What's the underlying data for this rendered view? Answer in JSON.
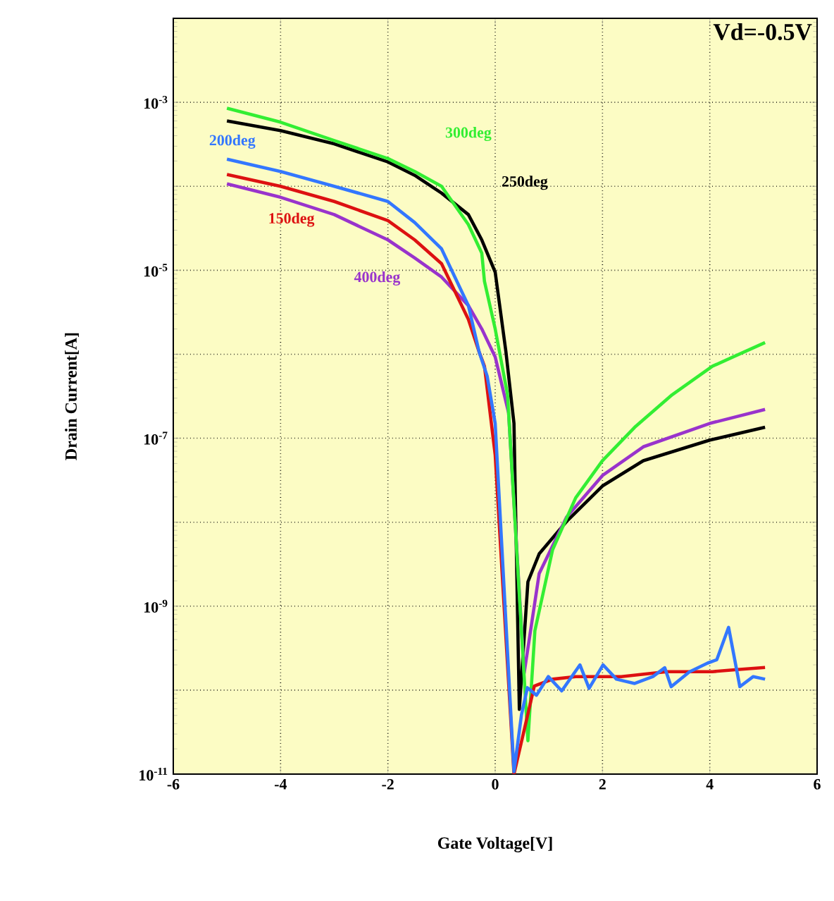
{
  "chart_data": {
    "type": "line",
    "title": "Vd=-0.5V",
    "xlabel": "Gate Voltage[V]",
    "ylabel": "Drain Current[A]",
    "xlim": [
      -6,
      6
    ],
    "xticks": [
      -6,
      -4,
      -2,
      0,
      2,
      4,
      6
    ],
    "ylim": [
      1e-11,
      0.01
    ],
    "log": "y",
    "yticks": [
      {
        "value": 1e-11,
        "label": "10$^{-11}$"
      },
      {
        "value": 1e-10,
        "label": null
      },
      {
        "value": 1e-09,
        "label": "10$^{-9}$"
      },
      {
        "value": 1e-08,
        "label": null
      },
      {
        "value": 1e-07,
        "label": "10$^{-7}$"
      },
      {
        "value": 1e-06,
        "label": null
      },
      {
        "value": 1e-05,
        "label": "10$^{-5}$"
      },
      {
        "value": 0.0001,
        "label": null
      },
      {
        "value": 0.001,
        "label": "10$^{-3}$"
      },
      {
        "value": 0.01,
        "label": null
      }
    ],
    "grid": true,
    "marker": "none",
    "line_style": "solid",
    "series": [
      {
        "name": "250deg",
        "color": "#000000",
        "x": [
          -5,
          -4,
          -3,
          -2,
          -1.5,
          -1,
          -0.5,
          -0.25,
          0,
          0.2,
          0.35,
          0.45,
          0.61,
          0.82,
          1.33,
          2.0,
          2.76,
          4.0,
          5.03
        ],
        "values": [
          0.0006,
          0.00046,
          0.00032,
          0.000195,
          0.000135,
          8.3e-05,
          4.6e-05,
          2.3e-05,
          9.5e-06,
          1.07e-06,
          1.5e-07,
          5.9e-11,
          1.95e-09,
          4.2e-09,
          1.02e-08,
          2.7e-08,
          5.4e-08,
          9.5e-08,
          1.35e-07
        ]
      },
      {
        "name": "400deg",
        "color": "#9933cc",
        "x": [
          -5,
          -4,
          -3,
          -2,
          -1.5,
          -1,
          -0.5,
          -0.25,
          0,
          0.25,
          0.54,
          0.82,
          1.33,
          2.0,
          2.76,
          4.0,
          5.03
        ],
        "values": [
          0.000107,
          7.4e-05,
          4.6e-05,
          2.3e-05,
          1.4e-05,
          8.3e-06,
          3.8e-06,
          2e-06,
          9.3e-07,
          2e-07,
          1.6e-10,
          2.45e-09,
          1.15e-08,
          3.6e-08,
          7.9e-08,
          1.5e-07,
          2.2e-07
        ]
      },
      {
        "name": "300deg",
        "color": "#33ee33",
        "x": [
          -5,
          -4,
          -3,
          -2,
          -1.5,
          -1,
          -0.5,
          -0.25,
          -0.2,
          0,
          0.23,
          0.61,
          0.74,
          1.07,
          1.5,
          2.0,
          2.6,
          3.3,
          4.05,
          5.03
        ],
        "values": [
          0.00085,
          0.00058,
          0.00035,
          0.000214,
          0.00015,
          0.0001,
          3.5e-05,
          1.6e-05,
          7.4e-06,
          2e-06,
          3.3e-07,
          2.5e-11,
          5.1e-10,
          4.7e-09,
          1.95e-08,
          5.4e-08,
          1.35e-07,
          3.3e-07,
          7.2e-07,
          1.38e-06
        ]
      },
      {
        "name": "150deg",
        "color": "#dd1111",
        "x": [
          -5,
          -4,
          -3,
          -2,
          -1.5,
          -1,
          -0.5,
          -0.3,
          -0.2,
          0,
          0.35,
          0.73,
          1.07,
          1.5,
          1.92,
          2.35,
          2.77,
          3.2,
          3.62,
          4.05,
          4.47,
          5.03
        ],
        "values": [
          0.000138,
          0.0001,
          6.6e-05,
          3.9e-05,
          2.3e-05,
          1.2e-05,
          2.6e-06,
          1.07e-06,
          7.2e-07,
          6.3e-08,
          1e-11,
          1.12e-10,
          1.35e-10,
          1.45e-10,
          1.45e-10,
          1.45e-10,
          1.55e-10,
          1.66e-10,
          1.66e-10,
          1.66e-10,
          1.75e-10,
          1.86e-10
        ]
      },
      {
        "name": "200deg",
        "color": "#3377ff",
        "x": [
          -5,
          -4,
          -3,
          -2,
          -1.5,
          -1,
          -0.5,
          -0.3,
          -0.15,
          0,
          0.35,
          0.49,
          0.6,
          0.77,
          0.99,
          1.24,
          1.58,
          1.75,
          2.01,
          2.26,
          2.6,
          2.94,
          3.16,
          3.28,
          3.62,
          3.96,
          4.13,
          4.35,
          4.56,
          4.81,
          5.03
        ],
        "values": [
          0.00021,
          0.00015,
          0.0001,
          6.6e-05,
          3.7e-05,
          1.8e-05,
          3.8e-06,
          1.07e-06,
          5.5e-07,
          1.5e-07,
          1.07e-11,
          5.1e-11,
          1.07e-10,
          8.7e-11,
          1.45e-10,
          9.8e-11,
          2e-10,
          1.05e-10,
          2e-10,
          1.35e-10,
          1.2e-10,
          1.45e-10,
          1.85e-10,
          1.1e-10,
          1.65e-10,
          2.1e-10,
          2.3e-10,
          5.6e-10,
          1.1e-10,
          1.45e-10,
          1.35e-10
        ]
      }
    ]
  }
}
